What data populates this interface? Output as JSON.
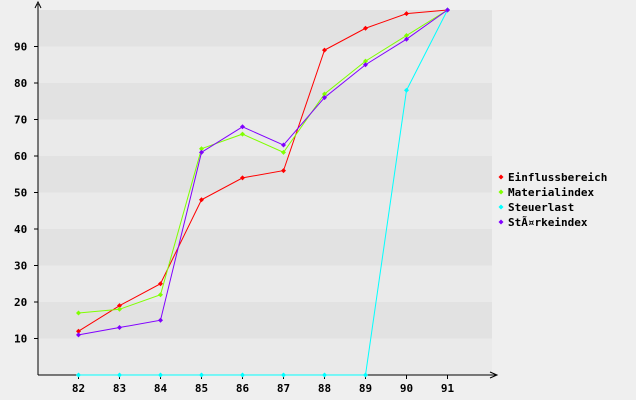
{
  "chart_data": {
    "type": "line",
    "title": "",
    "xlabel": "",
    "ylabel": "",
    "x": [
      "82",
      "83",
      "84",
      "85",
      "86",
      "87",
      "88",
      "89",
      "90",
      "91"
    ],
    "yticks": [
      10,
      20,
      30,
      40,
      50,
      60,
      70,
      80,
      90
    ],
    "ylim": [
      0,
      100
    ],
    "grid": "horizontal bands",
    "legend_position": "right",
    "series": [
      {
        "name": "Einflussbereich",
        "color": "#ff0000",
        "values": [
          12,
          19,
          25,
          48,
          54,
          56,
          89,
          95,
          99,
          100
        ]
      },
      {
        "name": "Materialindex",
        "color": "#80ff00",
        "values": [
          17,
          18,
          22,
          62,
          66,
          61,
          77,
          86,
          93,
          100
        ]
      },
      {
        "name": "Steuerlast",
        "color": "#00ffff",
        "values": [
          0,
          0,
          0,
          0,
          0,
          0,
          0,
          0,
          78,
          100
        ]
      },
      {
        "name": "StÃ¤rkeindex",
        "color": "#8000ff",
        "values": [
          11,
          13,
          15,
          61,
          68,
          63,
          76,
          85,
          92,
          100
        ]
      }
    ]
  }
}
